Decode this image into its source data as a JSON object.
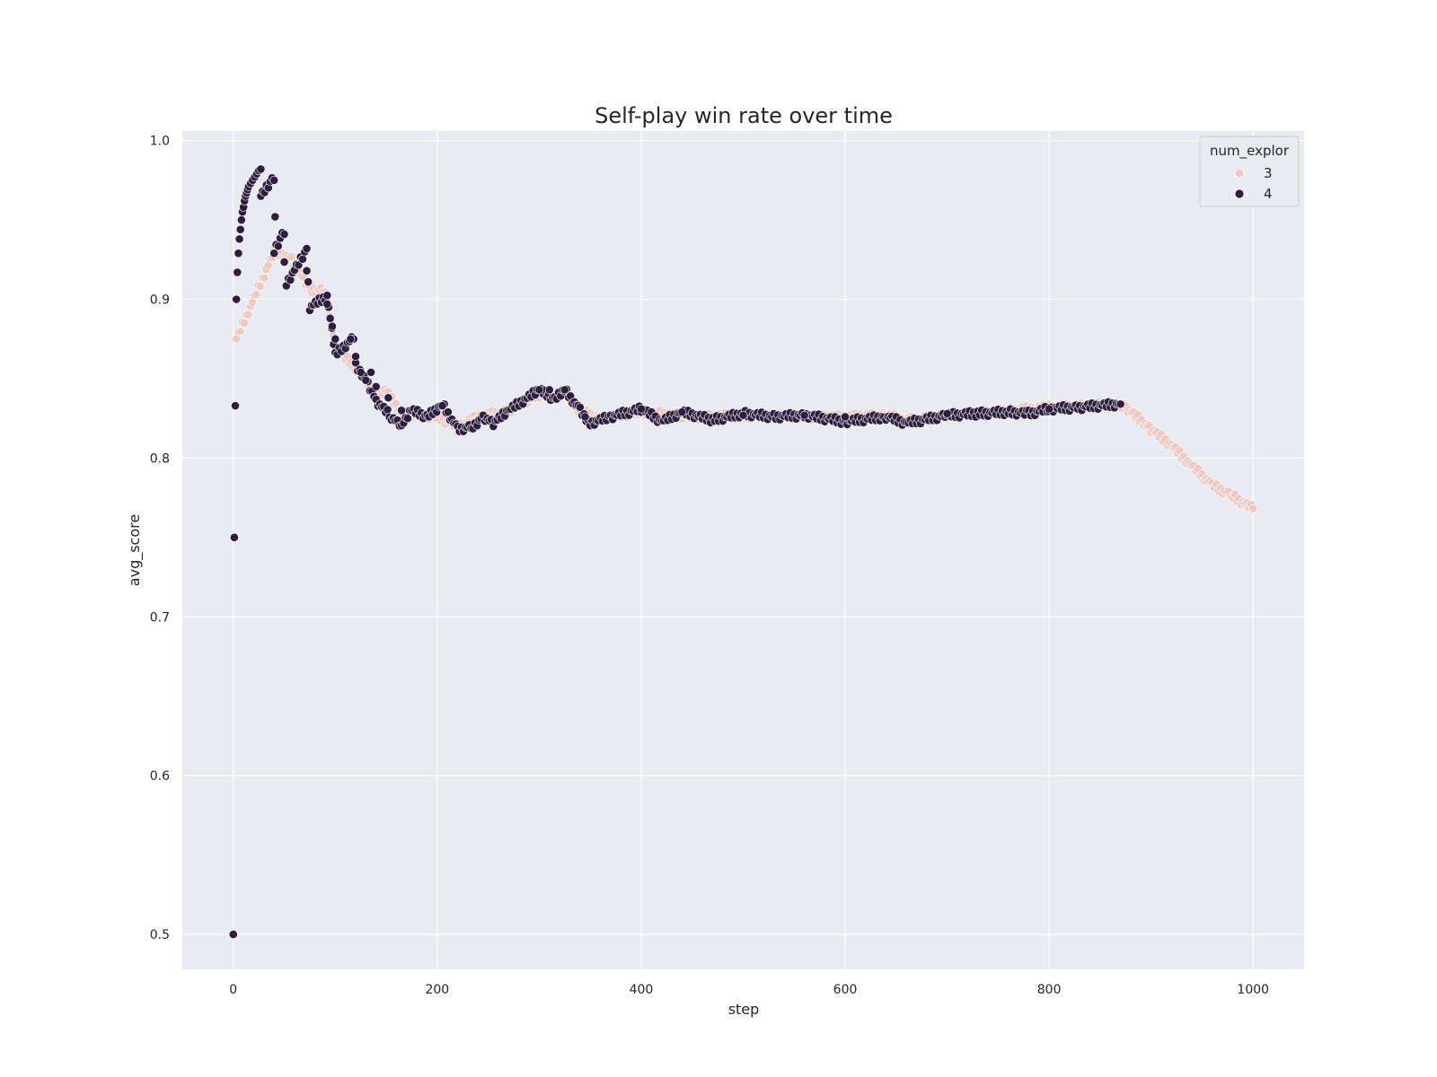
{
  "chart_data": {
    "type": "scatter",
    "title": "Self-play win rate over time",
    "xlabel": "step",
    "ylabel": "avg_score",
    "xlim": [
      -50,
      1050
    ],
    "ylim": [
      0.478,
      1.006
    ],
    "x_ticks": [
      0,
      200,
      400,
      600,
      800,
      1000
    ],
    "y_ticks": [
      0.5,
      0.6,
      0.7,
      0.8,
      0.9,
      1.0
    ],
    "grid": true,
    "legend": {
      "title": "num_explor",
      "placement": "top-right"
    },
    "series": [
      {
        "name": "3",
        "color": "#ecc9c3",
        "trend": [
          [
            3,
            0.875
          ],
          [
            40,
            0.93
          ],
          [
            55,
            0.927
          ],
          [
            75,
            0.906
          ],
          [
            90,
            0.906
          ],
          [
            100,
            0.87
          ],
          [
            120,
            0.857
          ],
          [
            140,
            0.84
          ],
          [
            150,
            0.842
          ],
          [
            165,
            0.828
          ],
          [
            200,
            0.826
          ],
          [
            220,
            0.82
          ],
          [
            240,
            0.826
          ],
          [
            270,
            0.83
          ],
          [
            300,
            0.84
          ],
          [
            325,
            0.84
          ],
          [
            340,
            0.83
          ],
          [
            360,
            0.825
          ],
          [
            400,
            0.829
          ],
          [
            450,
            0.826
          ],
          [
            500,
            0.827
          ],
          [
            550,
            0.826
          ],
          [
            600,
            0.826
          ],
          [
            640,
            0.827
          ],
          [
            660,
            0.824
          ],
          [
            700,
            0.827
          ],
          [
            760,
            0.83
          ],
          [
            800,
            0.832
          ],
          [
            860,
            0.834
          ],
          [
            875,
            0.832
          ],
          [
            900,
            0.818
          ],
          [
            920,
            0.808
          ],
          [
            940,
            0.795
          ],
          [
            960,
            0.783
          ],
          [
            980,
            0.776
          ],
          [
            1000,
            0.768
          ]
        ]
      },
      {
        "name": "4",
        "color": "#2d1e3e",
        "points": [
          [
            0,
            0.5
          ],
          [
            1,
            0.75
          ],
          [
            2,
            0.833
          ],
          [
            3,
            0.9
          ],
          [
            4,
            0.917
          ],
          [
            5,
            0.929
          ],
          [
            6,
            0.938
          ],
          [
            7,
            0.944
          ],
          [
            8,
            0.95
          ],
          [
            9,
            0.955
          ],
          [
            10,
            0.958
          ],
          [
            11,
            0.962
          ],
          [
            12,
            0.965
          ],
          [
            13,
            0.967
          ],
          [
            14,
            0.969
          ],
          [
            15,
            0.971
          ],
          [
            17,
            0.973
          ],
          [
            19,
            0.975
          ],
          [
            21,
            0.977
          ],
          [
            23,
            0.979
          ],
          [
            25,
            0.981
          ],
          [
            27,
            0.982
          ],
          [
            40,
            0.975
          ],
          [
            41,
            0.952
          ],
          [
            50,
            0.941
          ],
          [
            72,
            0.918
          ],
          [
            92,
            0.897
          ],
          [
            97,
            0.883
          ],
          [
            100,
            0.875
          ],
          [
            115,
            0.875
          ],
          [
            120,
            0.864
          ],
          [
            125,
            0.854
          ],
          [
            130,
            0.849
          ],
          [
            135,
            0.854
          ],
          [
            140,
            0.845
          ],
          [
            152,
            0.838
          ],
          [
            165,
            0.83
          ],
          [
            205,
            0.833
          ],
          [
            300,
            0.843
          ],
          [
            310,
            0.843
          ],
          [
            325,
            0.843
          ],
          [
            345,
            0.826
          ],
          [
            400,
            0.831
          ],
          [
            440,
            0.829
          ],
          [
            500,
            0.827
          ],
          [
            560,
            0.827
          ],
          [
            600,
            0.826
          ],
          [
            700,
            0.828
          ],
          [
            800,
            0.831
          ],
          [
            870,
            0.834
          ]
        ],
        "trend": [
          [
            27,
            0.965
          ],
          [
            38,
            0.975
          ],
          [
            40,
            0.93
          ],
          [
            48,
            0.94
          ],
          [
            52,
            0.91
          ],
          [
            72,
            0.931
          ],
          [
            75,
            0.895
          ],
          [
            92,
            0.902
          ],
          [
            95,
            0.888
          ],
          [
            100,
            0.865
          ],
          [
            118,
            0.876
          ],
          [
            120,
            0.858
          ],
          [
            130,
            0.85
          ],
          [
            140,
            0.836
          ],
          [
            155,
            0.826
          ],
          [
            165,
            0.82
          ],
          [
            175,
            0.83
          ],
          [
            190,
            0.826
          ],
          [
            205,
            0.834
          ],
          [
            220,
            0.818
          ],
          [
            235,
            0.82
          ],
          [
            245,
            0.826
          ],
          [
            255,
            0.822
          ],
          [
            270,
            0.83
          ],
          [
            300,
            0.843
          ],
          [
            315,
            0.837
          ],
          [
            325,
            0.843
          ],
          [
            340,
            0.83
          ],
          [
            350,
            0.822
          ],
          [
            370,
            0.826
          ],
          [
            400,
            0.831
          ],
          [
            420,
            0.823
          ],
          [
            440,
            0.829
          ],
          [
            470,
            0.824
          ],
          [
            500,
            0.828
          ],
          [
            530,
            0.826
          ],
          [
            560,
            0.827
          ],
          [
            600,
            0.823
          ],
          [
            640,
            0.826
          ],
          [
            660,
            0.822
          ],
          [
            700,
            0.827
          ],
          [
            730,
            0.828
          ],
          [
            760,
            0.829
          ],
          [
            780,
            0.828
          ],
          [
            800,
            0.831
          ],
          [
            830,
            0.832
          ],
          [
            870,
            0.834
          ]
        ]
      }
    ]
  }
}
